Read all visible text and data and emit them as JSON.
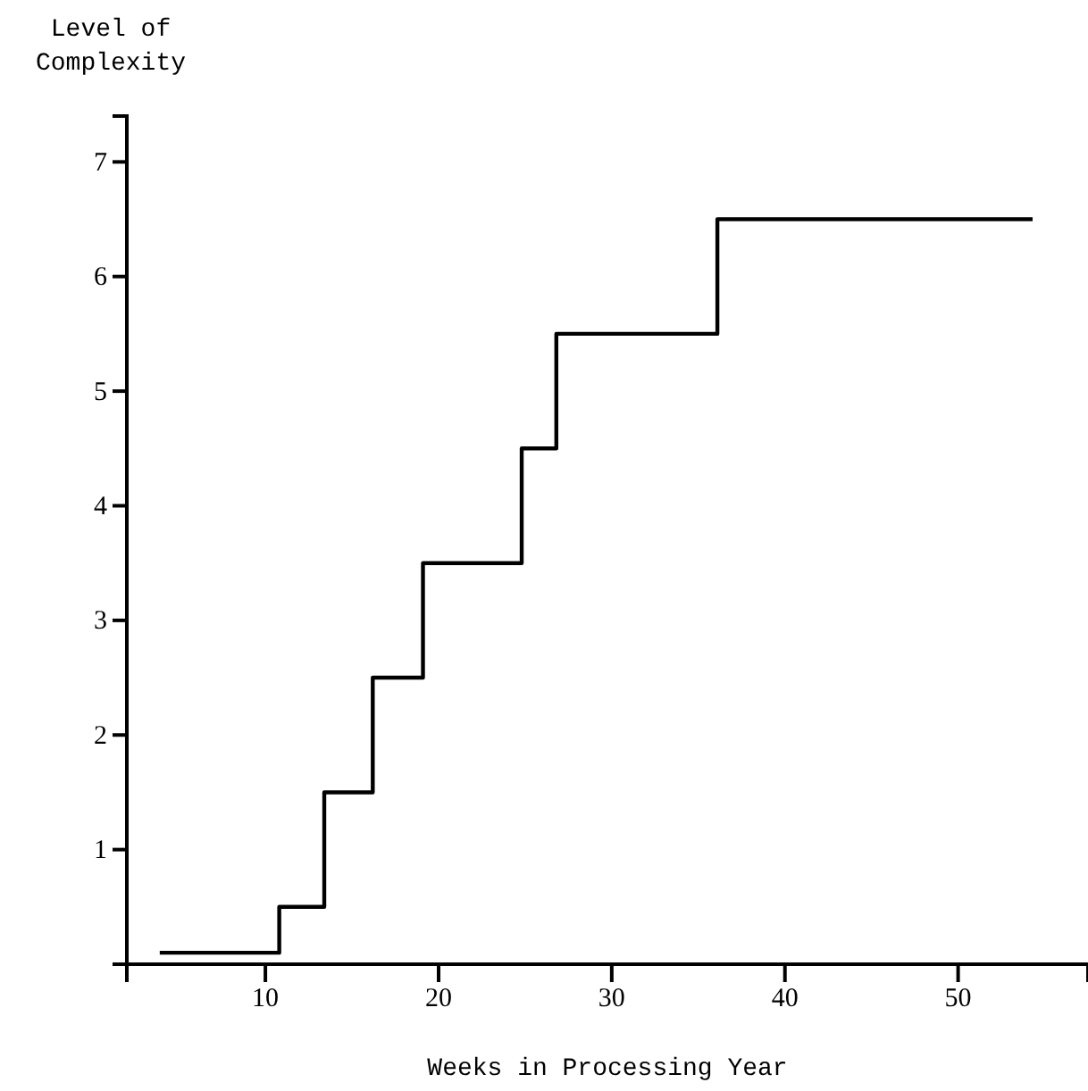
{
  "chart_data": {
    "type": "step",
    "ylabel": "Level of Complexity",
    "xlabel": "Weeks in Processing Year",
    "x": [
      3.9,
      10.8,
      13.4,
      16.2,
      19.1,
      24.8,
      26.8,
      36.1,
      54.3
    ],
    "values": [
      0.1,
      0.5,
      1.5,
      2.5,
      3.5,
      4.5,
      5.5,
      6.5,
      6.5
    ],
    "color": "#000000",
    "xlim": [
      2,
      57.5
    ],
    "xticks": [
      10,
      20,
      30,
      40,
      50
    ],
    "ylim": [
      0,
      7.4
    ],
    "yticks": [
      1,
      2,
      3,
      4,
      5,
      6,
      7
    ],
    "grid": false,
    "marker": "none",
    "line_style": "solid"
  }
}
